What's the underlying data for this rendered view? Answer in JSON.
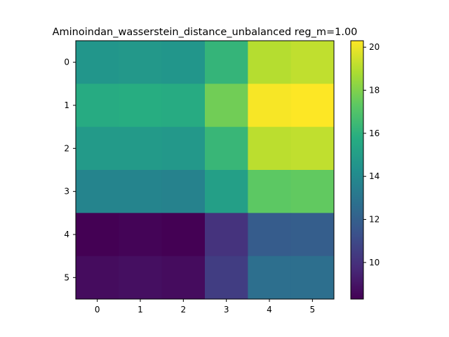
{
  "chart_data": {
    "type": "heatmap",
    "title": "Aminoindan_wasserstein_distance_unbalanced reg_m=1.00",
    "x_ticks": [
      "0",
      "1",
      "2",
      "3",
      "4",
      "5"
    ],
    "y_ticks": [
      "0",
      "1",
      "2",
      "3",
      "4",
      "5"
    ],
    "values": [
      [
        14.6,
        14.7,
        14.6,
        16.2,
        19.0,
        19.2
      ],
      [
        15.7,
        15.8,
        15.7,
        17.7,
        20.2,
        20.3
      ],
      [
        14.8,
        14.8,
        14.7,
        16.3,
        19.1,
        19.2
      ],
      [
        13.7,
        13.7,
        13.6,
        15.1,
        17.3,
        17.4
      ],
      [
        8.3,
        8.4,
        8.3,
        10.1,
        11.8,
        11.9
      ],
      [
        8.7,
        8.8,
        8.7,
        10.5,
        12.7,
        12.7
      ]
    ],
    "colorbar": {
      "min": 8.3,
      "max": 20.3,
      "ticks": [
        10,
        12,
        14,
        16,
        18,
        20
      ],
      "colormap": "viridis"
    }
  }
}
